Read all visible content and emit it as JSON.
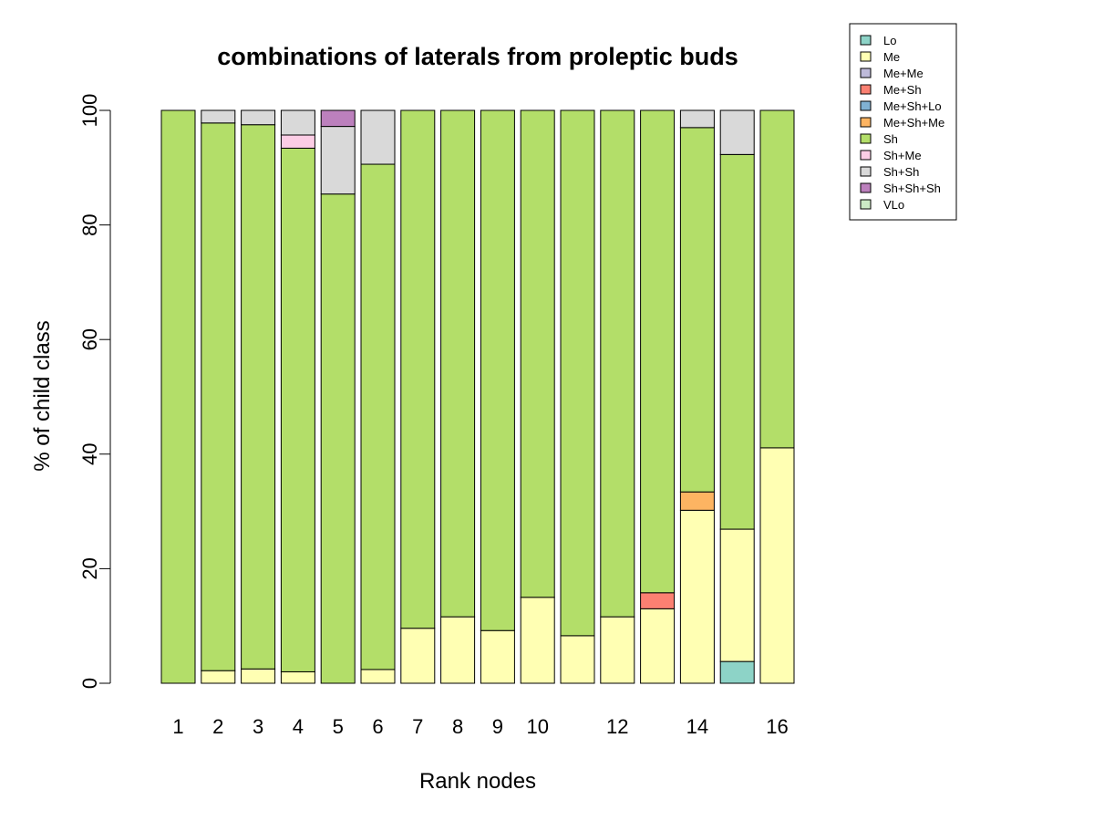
{
  "chart_data": {
    "type": "bar",
    "stacked": true,
    "title": "combinations of laterals from proleptic buds",
    "xlabel": "Rank nodes",
    "ylabel": "% of child class",
    "ylim": [
      0,
      100
    ],
    "y_ticks": [
      "0",
      "20",
      "40",
      "60",
      "80",
      "100"
    ],
    "categories": [
      "1",
      "2",
      "3",
      "4",
      "5",
      "6",
      "7",
      "8",
      "9",
      "10",
      "11",
      "12",
      "13",
      "14",
      "15",
      "16"
    ],
    "x_tick_labels": [
      "1",
      "2",
      "3",
      "4",
      "5",
      "6",
      "7",
      "8",
      "9",
      "10",
      "",
      "12",
      "",
      "14",
      "",
      "16"
    ],
    "legend_position": "top-right",
    "grid": false,
    "series": [
      {
        "name": "Lo",
        "color": "#8DD3C7",
        "values": [
          0,
          0,
          0,
          0,
          0,
          0,
          0,
          0,
          0,
          0,
          0,
          0,
          0,
          0,
          3.8,
          0
        ]
      },
      {
        "name": "Me",
        "color": "#FFFFB3",
        "values": [
          0,
          2.2,
          2.5,
          2,
          0,
          2.4,
          9.6,
          11.6,
          9.2,
          15,
          8.3,
          11.6,
          13,
          30.2,
          23.1,
          41.1
        ]
      },
      {
        "name": "Me+Me",
        "color": "#BEBADA",
        "values": [
          0,
          0,
          0,
          0,
          0,
          0,
          0,
          0,
          0,
          0,
          0,
          0,
          0,
          0,
          0,
          0
        ]
      },
      {
        "name": "Me+Sh",
        "color": "#FB8072",
        "values": [
          0,
          0,
          0,
          0,
          0,
          0,
          0,
          0,
          0,
          0,
          0,
          0,
          2.8,
          0,
          0,
          0
        ]
      },
      {
        "name": "Me+Sh+Lo",
        "color": "#80B1D3",
        "values": [
          0,
          0,
          0,
          0,
          0,
          0,
          0,
          0,
          0,
          0,
          0,
          0,
          0,
          0,
          0,
          0
        ]
      },
      {
        "name": "Me+Sh+Me",
        "color": "#FDB462",
        "values": [
          0,
          0,
          0,
          0,
          0,
          0,
          0,
          0,
          0,
          0,
          0,
          0,
          0,
          3.2,
          0,
          0
        ]
      },
      {
        "name": "Sh",
        "color": "#B3DE69",
        "values": [
          100,
          95.6,
          95,
          91.4,
          85.4,
          88.2,
          90.4,
          88.4,
          90.8,
          85,
          91.7,
          88.4,
          84.2,
          63.6,
          65.4,
          58.9
        ]
      },
      {
        "name": "Sh+Me",
        "color": "#FCCDE5",
        "values": [
          0,
          0,
          0,
          2.3,
          0,
          0,
          0,
          0,
          0,
          0,
          0,
          0,
          0,
          0,
          0,
          0
        ]
      },
      {
        "name": "Sh+Sh",
        "color": "#D9D9D9",
        "values": [
          0,
          2.2,
          2.5,
          4.3,
          11.8,
          9.4,
          0,
          0,
          0,
          0,
          0,
          0,
          0,
          3,
          7.7,
          0
        ]
      },
      {
        "name": "Sh+Sh+Sh",
        "color": "#BC80BD",
        "values": [
          0,
          0,
          0,
          0,
          2.8,
          0,
          0,
          0,
          0,
          0,
          0,
          0,
          0,
          0,
          0,
          0
        ]
      },
      {
        "name": "VLo",
        "color": "#CCEBC5",
        "values": [
          0,
          0,
          0,
          0,
          0,
          0,
          0,
          0,
          0,
          0,
          0,
          0,
          0,
          0,
          0,
          0
        ]
      }
    ]
  }
}
